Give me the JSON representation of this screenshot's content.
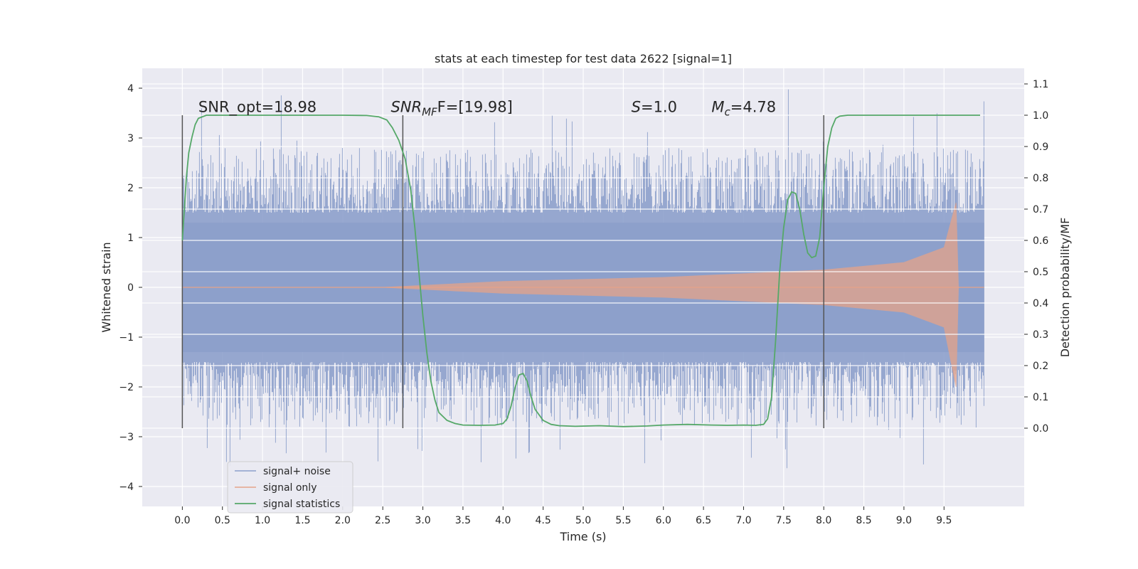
{
  "chart_data": {
    "type": "line",
    "title": "stats at each timestep for test data 2622 [signal=1]",
    "xlabel": "Time (s)",
    "ylabel": "Whitened strain",
    "ylabel_right": "Detection probability/MF",
    "xlim": [
      -0.5,
      10.5
    ],
    "ylim": [
      -4.4,
      4.4
    ],
    "ylim_right": [
      -0.25,
      1.15
    ],
    "xticks": [
      "0.0",
      "0.5",
      "1.0",
      "1.5",
      "2.0",
      "2.5",
      "3.0",
      "3.5",
      "4.0",
      "4.5",
      "5.0",
      "5.5",
      "6.0",
      "6.5",
      "7.0",
      "7.5",
      "8.0",
      "8.5",
      "9.0",
      "9.5"
    ],
    "yticks": [
      "4",
      "3",
      "2",
      "1",
      "0",
      "−1",
      "−2",
      "−3",
      "−4"
    ],
    "yticks_right": [
      "1.1",
      "1.0",
      "0.9",
      "0.8",
      "0.7",
      "0.6",
      "0.5",
      "0.4",
      "0.3",
      "0.2",
      "0.1",
      "0.0"
    ],
    "grid": true,
    "legend_position": "lower-left",
    "annotations": [
      {
        "text": "SNR_opt=18.98",
        "x": 0.2,
        "y_right": 1.01
      },
      {
        "html_text": "SNR",
        "sub": "MF",
        "rest": "F=[19.98]",
        "text": "SNR_MF F=[19.98]",
        "x": 2.6,
        "y_right": 1.01
      },
      {
        "html_text": "S",
        "rest": "=1.0",
        "text": "S=1.0",
        "x": 5.6,
        "y_right": 1.01
      },
      {
        "html_text": "M",
        "sub": "c",
        "rest": "=4.78",
        "text": "M_c=4.78",
        "x": 6.6,
        "y_right": 1.01
      }
    ],
    "vlines": [
      0.0,
      2.75,
      8.0
    ],
    "vline_range_right": [
      0.0,
      1.0
    ],
    "series": [
      {
        "name": "signal+ noise",
        "color": "#8da0cb",
        "kind": "noise-band",
        "x_range": [
          0.0,
          10.0
        ],
        "core_amplitude": 1.3,
        "max_spike": 4.0,
        "min_spike": -3.8
      },
      {
        "name": "signal only",
        "color": "#e5a389",
        "kind": "chirp-envelope",
        "envelope_points": [
          [
            2.5,
            0.0
          ],
          [
            4.0,
            0.12
          ],
          [
            6.0,
            0.2
          ],
          [
            8.0,
            0.35
          ],
          [
            9.0,
            0.5
          ],
          [
            9.5,
            0.8
          ],
          [
            9.65,
            1.7
          ],
          [
            9.68,
            0.0
          ]
        ],
        "envelope_points_lower": [
          [
            2.5,
            0.0
          ],
          [
            4.0,
            -0.12
          ],
          [
            6.0,
            -0.2
          ],
          [
            8.0,
            -0.35
          ],
          [
            9.0,
            -0.5
          ],
          [
            9.5,
            -0.8
          ],
          [
            9.65,
            -2.0
          ],
          [
            9.68,
            0.0
          ]
        ]
      },
      {
        "name": "signal statistics",
        "color": "#55a868",
        "axis": "right",
        "x": [
          0.0,
          0.05,
          0.08,
          0.12,
          0.16,
          0.2,
          0.3,
          0.5,
          1.0,
          1.5,
          2.0,
          2.3,
          2.45,
          2.55,
          2.62,
          2.7,
          2.78,
          2.85,
          2.9,
          2.95,
          3.0,
          3.05,
          3.1,
          3.15,
          3.2,
          3.3,
          3.4,
          3.5,
          3.7,
          3.9,
          4.0,
          4.05,
          4.1,
          4.15,
          4.2,
          4.25,
          4.3,
          4.35,
          4.4,
          4.5,
          4.6,
          4.7,
          4.9,
          5.2,
          5.5,
          5.8,
          6.0,
          6.3,
          6.6,
          6.8,
          7.0,
          7.15,
          7.25,
          7.3,
          7.35,
          7.4,
          7.45,
          7.5,
          7.55,
          7.6,
          7.65,
          7.7,
          7.75,
          7.8,
          7.85,
          7.9,
          7.95,
          8.0,
          8.05,
          8.1,
          8.15,
          8.2,
          8.3,
          8.5,
          9.0,
          9.5,
          9.95
        ],
        "y": [
          0.6,
          0.8,
          0.88,
          0.93,
          0.97,
          0.99,
          1.0,
          1.0,
          1.0,
          1.0,
          1.0,
          0.999,
          0.995,
          0.985,
          0.96,
          0.92,
          0.86,
          0.76,
          0.64,
          0.5,
          0.36,
          0.24,
          0.15,
          0.09,
          0.05,
          0.025,
          0.015,
          0.01,
          0.009,
          0.01,
          0.015,
          0.03,
          0.07,
          0.13,
          0.17,
          0.175,
          0.15,
          0.1,
          0.06,
          0.025,
          0.012,
          0.008,
          0.006,
          0.008,
          0.005,
          0.007,
          0.01,
          0.012,
          0.01,
          0.009,
          0.01,
          0.009,
          0.012,
          0.03,
          0.1,
          0.28,
          0.5,
          0.64,
          0.73,
          0.755,
          0.75,
          0.7,
          0.62,
          0.56,
          0.545,
          0.55,
          0.61,
          0.77,
          0.9,
          0.96,
          0.99,
          0.997,
          1.0,
          1.0,
          1.0,
          1.0,
          1.0
        ]
      }
    ]
  }
}
